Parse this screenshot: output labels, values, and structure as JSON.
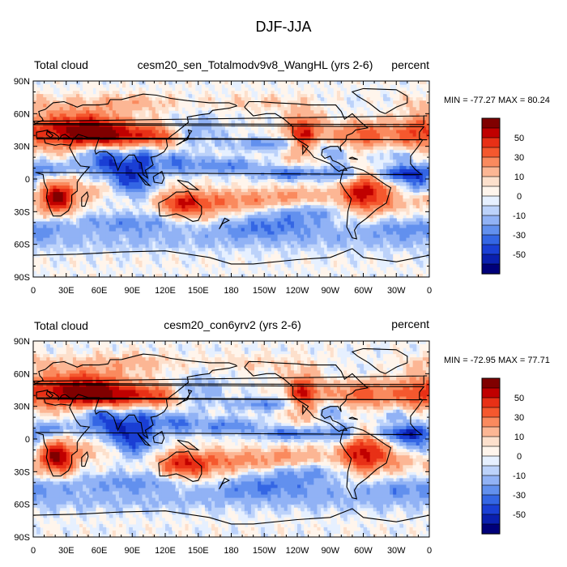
{
  "figure": {
    "title": "DJF-JJA"
  },
  "chart_data": [
    {
      "type": "heatmap",
      "variable": "Total cloud",
      "case": "cesm20_sen_Totalmodv9v8_WangHL (yrs 2-6)",
      "units": "percent",
      "stats": "MIN = -77.27 MAX =  80.24",
      "min": -77.27,
      "max": 80.24,
      "x_range": [
        0,
        360
      ],
      "y_range": [
        -90,
        90
      ],
      "x_ticks": [
        "0",
        "30E",
        "60E",
        "90E",
        "120E",
        "150E",
        "180",
        "150W",
        "120W",
        "90W",
        "60W",
        "30W",
        "0"
      ],
      "y_ticks": [
        "90N",
        "60N",
        "30N",
        "0",
        "30S",
        "60S",
        "90S"
      ],
      "colorbar_levels": [
        -60,
        -50,
        -40,
        -30,
        -20,
        -10,
        -5,
        0,
        5,
        10,
        20,
        30,
        40,
        50,
        60
      ],
      "colorbar_labels": [
        "50",
        "30",
        "10",
        "0",
        "-10",
        "-30",
        "-50"
      ],
      "colors": [
        "#800000",
        "#c00000",
        "#e83016",
        "#f5582e",
        "#fa8a5e",
        "#fcb694",
        "#fde0cc",
        "#fff5ec",
        "#e6f0ff",
        "#bcd2fa",
        "#91b2f5",
        "#6290ee",
        "#3466e4",
        "#1a3fd4",
        "#0a1fae",
        "#00007a"
      ]
    },
    {
      "type": "heatmap",
      "variable": "Total cloud",
      "case": "cesm20_con6yrv2 (yrs 2-6)",
      "units": "percent",
      "stats": "MIN = -72.95 MAX =  77.71",
      "min": -72.95,
      "max": 77.71,
      "x_range": [
        0,
        360
      ],
      "y_range": [
        -90,
        90
      ],
      "x_ticks": [
        "0",
        "30E",
        "60E",
        "90E",
        "120E",
        "150E",
        "180",
        "150W",
        "120W",
        "90W",
        "60W",
        "30W",
        "0"
      ],
      "y_ticks": [
        "90N",
        "60N",
        "30N",
        "0",
        "30S",
        "60S",
        "90S"
      ],
      "colorbar_levels": [
        -60,
        -50,
        -40,
        -30,
        -20,
        -10,
        -5,
        0,
        5,
        10,
        20,
        30,
        40,
        50,
        60
      ],
      "colorbar_labels": [
        "50",
        "30",
        "10",
        "0",
        "-10",
        "-30",
        "-50"
      ],
      "colors": [
        "#800000",
        "#c00000",
        "#e83016",
        "#f5582e",
        "#fa8a5e",
        "#fcb694",
        "#fde0cc",
        "#fff5ec",
        "#e6f0ff",
        "#bcd2fa",
        "#91b2f5",
        "#6290ee",
        "#3466e4",
        "#1a3fd4",
        "#0a1fae",
        "#00007a"
      ]
    }
  ]
}
